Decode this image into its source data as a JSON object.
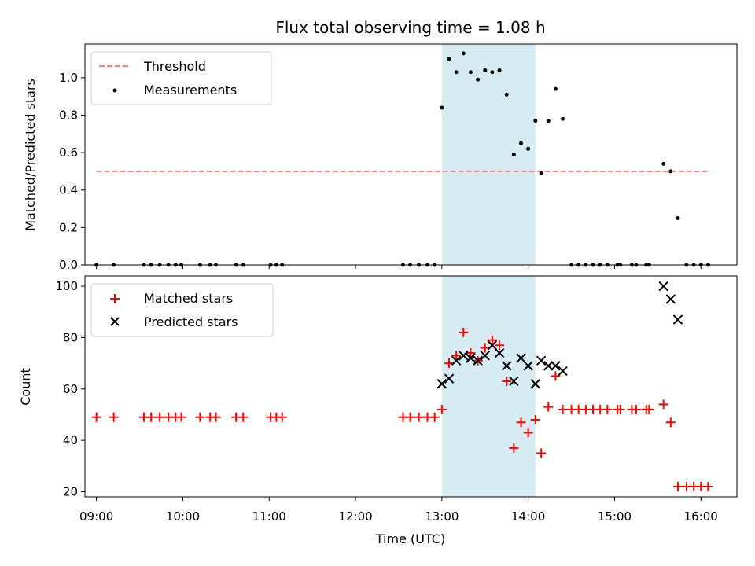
{
  "chart_data": [
    {
      "type": "scatter",
      "title": "Flux total observing time = 1.08 h",
      "xlabel": "",
      "ylabel": "Matched/Predicted stars",
      "ylim": [
        0,
        1.18
      ],
      "yticks": [
        "0.0",
        "0.2",
        "0.4",
        "0.6",
        "0.8",
        "1.0"
      ],
      "xlim": [
        "08:52",
        "16:25"
      ],
      "shaded_span": {
        "start": "13:00",
        "end": "14:05",
        "color": "#add8e6"
      },
      "threshold": {
        "name": "Threshold",
        "value": 0.5,
        "x_start": "09:00",
        "x_end": "16:05",
        "color": "#ff7f7f",
        "style": "dashed"
      },
      "legend": {
        "placement": "upper-left",
        "items": [
          "Threshold",
          "Measurements"
        ]
      },
      "series": [
        {
          "name": "Measurements",
          "color": "#000000",
          "marker": "dot",
          "points": [
            [
              "09:00",
              0
            ],
            [
              "09:12",
              0
            ],
            [
              "09:33",
              0
            ],
            [
              "09:38",
              0
            ],
            [
              "09:44",
              0
            ],
            [
              "09:50",
              0
            ],
            [
              "09:55",
              0
            ],
            [
              "09:59",
              0
            ],
            [
              "10:12",
              0
            ],
            [
              "10:19",
              0
            ],
            [
              "10:23",
              0
            ],
            [
              "10:37",
              0
            ],
            [
              "10:42",
              0
            ],
            [
              "11:01",
              0
            ],
            [
              "11:05",
              0
            ],
            [
              "11:09",
              0
            ],
            [
              "12:33",
              0
            ],
            [
              "12:38",
              0
            ],
            [
              "12:44",
              0
            ],
            [
              "12:50",
              0
            ],
            [
              "12:55",
              0
            ],
            [
              "13:00",
              0.84
            ],
            [
              "13:05",
              1.1
            ],
            [
              "13:10",
              1.03
            ],
            [
              "13:15",
              1.13
            ],
            [
              "13:20",
              1.03
            ],
            [
              "13:25",
              0.99
            ],
            [
              "13:30",
              1.04
            ],
            [
              "13:35",
              1.03
            ],
            [
              "13:40",
              1.04
            ],
            [
              "13:45",
              0.91
            ],
            [
              "13:50",
              0.59
            ],
            [
              "13:55",
              0.65
            ],
            [
              "14:00",
              0.62
            ],
            [
              "14:05",
              0.77
            ],
            [
              "14:09",
              0.49
            ],
            [
              "14:14",
              0.77
            ],
            [
              "14:19",
              0.94
            ],
            [
              "14:24",
              0.78
            ],
            [
              "14:30",
              0
            ],
            [
              "14:35",
              0
            ],
            [
              "14:40",
              0
            ],
            [
              "14:45",
              0
            ],
            [
              "14:50",
              0
            ],
            [
              "14:55",
              0
            ],
            [
              "15:02",
              0
            ],
            [
              "15:04",
              0
            ],
            [
              "15:12",
              0
            ],
            [
              "15:15",
              0
            ],
            [
              "15:22",
              0
            ],
            [
              "15:24",
              0
            ],
            [
              "15:34",
              0.54
            ],
            [
              "15:39",
              0.5
            ],
            [
              "15:44",
              0.25
            ],
            [
              "15:50",
              0
            ],
            [
              "15:55",
              0
            ],
            [
              "16:00",
              0
            ],
            [
              "16:05",
              0
            ]
          ]
        }
      ]
    },
    {
      "type": "scatter",
      "title": "",
      "xlabel": "Time (UTC)",
      "ylabel": "Count",
      "ylim": [
        18,
        104
      ],
      "yticks": [
        "20",
        "40",
        "60",
        "80",
        "100"
      ],
      "xticks": [
        "09:00",
        "10:00",
        "11:00",
        "12:00",
        "13:00",
        "14:00",
        "15:00",
        "16:00"
      ],
      "xlim": [
        "08:52",
        "16:25"
      ],
      "shaded_span": {
        "start": "13:00",
        "end": "14:05",
        "color": "#add8e6"
      },
      "legend": {
        "placement": "upper-left",
        "items": [
          "Matched stars",
          "Predicted stars"
        ]
      },
      "series": [
        {
          "name": "Matched stars",
          "color": "#ff0000",
          "marker": "plus",
          "points": [
            [
              "09:00",
              49
            ],
            [
              "09:12",
              49
            ],
            [
              "09:33",
              49
            ],
            [
              "09:38",
              49
            ],
            [
              "09:44",
              49
            ],
            [
              "09:50",
              49
            ],
            [
              "09:55",
              49
            ],
            [
              "09:59",
              49
            ],
            [
              "10:12",
              49
            ],
            [
              "10:19",
              49
            ],
            [
              "10:23",
              49
            ],
            [
              "10:37",
              49
            ],
            [
              "10:42",
              49
            ],
            [
              "11:01",
              49
            ],
            [
              "11:05",
              49
            ],
            [
              "11:09",
              49
            ],
            [
              "12:33",
              49
            ],
            [
              "12:38",
              49
            ],
            [
              "12:44",
              49
            ],
            [
              "12:50",
              49
            ],
            [
              "12:55",
              49
            ],
            [
              "13:00",
              52
            ],
            [
              "13:05",
              70
            ],
            [
              "13:10",
              73
            ],
            [
              "13:15",
              82
            ],
            [
              "13:20",
              74
            ],
            [
              "13:25",
              71
            ],
            [
              "13:30",
              76
            ],
            [
              "13:35",
              79
            ],
            [
              "13:40",
              77
            ],
            [
              "13:45",
              63
            ],
            [
              "13:50",
              37
            ],
            [
              "13:55",
              47
            ],
            [
              "14:00",
              43
            ],
            [
              "14:05",
              48
            ],
            [
              "14:09",
              35
            ],
            [
              "14:14",
              53
            ],
            [
              "14:19",
              65
            ],
            [
              "14:24",
              52
            ],
            [
              "14:30",
              52
            ],
            [
              "14:35",
              52
            ],
            [
              "14:40",
              52
            ],
            [
              "14:45",
              52
            ],
            [
              "14:50",
              52
            ],
            [
              "14:55",
              52
            ],
            [
              "15:02",
              52
            ],
            [
              "15:04",
              52
            ],
            [
              "15:12",
              52
            ],
            [
              "15:15",
              52
            ],
            [
              "15:22",
              52
            ],
            [
              "15:24",
              52
            ],
            [
              "15:34",
              54
            ],
            [
              "15:39",
              47
            ],
            [
              "15:44",
              22
            ],
            [
              "15:50",
              22
            ],
            [
              "15:55",
              22
            ],
            [
              "16:00",
              22
            ],
            [
              "16:05",
              22
            ]
          ]
        },
        {
          "name": "Predicted stars",
          "color": "#000000",
          "marker": "cross",
          "points": [
            [
              "13:00",
              62
            ],
            [
              "13:05",
              64
            ],
            [
              "13:10",
              71
            ],
            [
              "13:15",
              73
            ],
            [
              "13:20",
              72
            ],
            [
              "13:25",
              71
            ],
            [
              "13:30",
              73
            ],
            [
              "13:35",
              77
            ],
            [
              "13:40",
              74
            ],
            [
              "13:45",
              69
            ],
            [
              "13:50",
              63
            ],
            [
              "13:55",
              72
            ],
            [
              "14:00",
              69
            ],
            [
              "14:05",
              62
            ],
            [
              "14:09",
              71
            ],
            [
              "14:14",
              69
            ],
            [
              "14:19",
              69
            ],
            [
              "14:24",
              67
            ],
            [
              "15:34",
              100
            ],
            [
              "15:39",
              95
            ],
            [
              "15:44",
              87
            ]
          ]
        }
      ]
    }
  ]
}
